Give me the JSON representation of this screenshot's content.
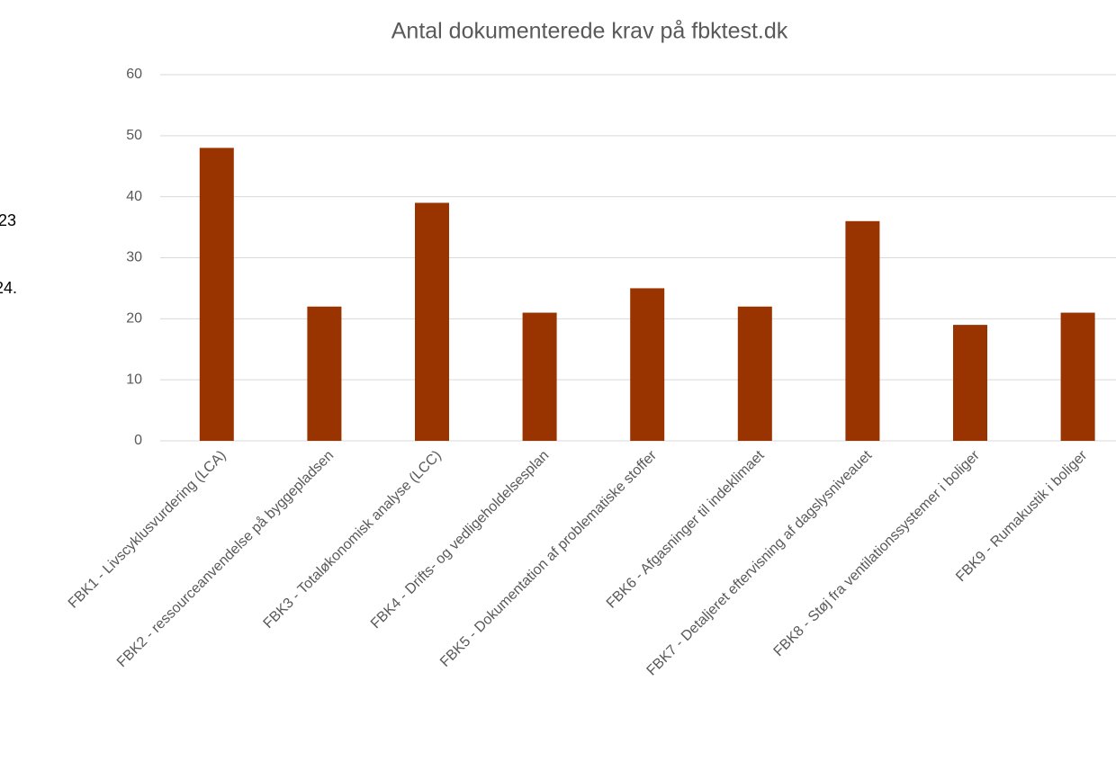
{
  "chart_data": {
    "type": "bar",
    "title": "Antal dokumenterede krav på fbktest.dk",
    "categories": [
      "FBK1 - Livscyklusvurdering (LCA)",
      "FBK2 - ressourceanvendelse på byggepladsen",
      "FBK3 - Totaløkonomisk analyse (LCC)",
      "FBK4 - Drifts- og vedligeholdelsesplan",
      "FBK5 - Dokumentation af problematiske stoffer",
      "FBK6 - Afgasninger til indeklimaet",
      "FBK7 - Detaljeret eftervisning af dagslysniveauet",
      "FBK8 - Støj fra ventilationssystemer i boliger",
      "FBK9 - Rumakustik i boliger"
    ],
    "values": [
      48,
      22,
      39,
      21,
      25,
      22,
      36,
      19,
      21
    ],
    "color": "#993300",
    "ylim": [
      0,
      60
    ],
    "yticks": [
      0,
      10,
      20,
      30,
      40,
      50,
      60
    ],
    "grid": true,
    "annotations": [
      "23",
      "24."
    ]
  }
}
